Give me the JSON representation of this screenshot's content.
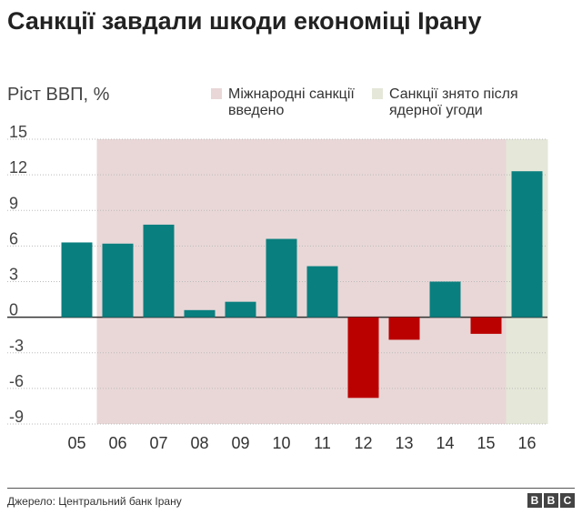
{
  "title": "Санкції завдали шкоди економіці Ірану",
  "legend": [
    {
      "label_line1": "Міжнародні санкції",
      "label_line2": "введено",
      "color": "#e9d7d7"
    },
    {
      "label_line1": "Санкції знято після",
      "label_line2": "ядерної угоди",
      "color": "#e5e7d8"
    }
  ],
  "source": "Джерело: Центральний банк Ірану",
  "logo": [
    "B",
    "B",
    "C"
  ],
  "chart_data": {
    "type": "bar",
    "ylabel": "Ріст ВВП, %",
    "categories": [
      "05",
      "06",
      "07",
      "08",
      "09",
      "10",
      "11",
      "12",
      "13",
      "14",
      "15",
      "16"
    ],
    "values": [
      6.3,
      6.2,
      7.8,
      0.6,
      1.3,
      6.6,
      4.3,
      -6.8,
      -1.9,
      3.0,
      -1.4,
      12.3
    ],
    "ylim": [
      -9,
      15
    ],
    "yticks": [
      15,
      12,
      9,
      6,
      3,
      0,
      -3,
      -6,
      -9
    ],
    "grid": true,
    "positive_color": "#0a7f7f",
    "negative_color": "#bb0000",
    "shaded_ranges": [
      {
        "from": "06",
        "to": "15",
        "color": "#e9d7d7"
      },
      {
        "from": "16",
        "to": "16",
        "color": "#e5e7d8"
      }
    ]
  }
}
